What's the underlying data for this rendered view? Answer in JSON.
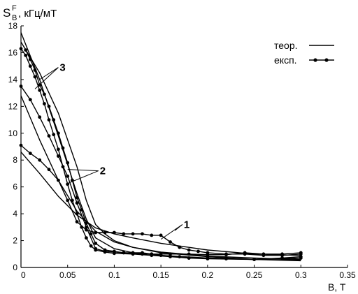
{
  "chart_data": {
    "type": "line",
    "title": "",
    "ylabel_main": "S",
    "ylabel_sup": "F",
    "ylabel_sub": "B",
    "ylabel_unit": ", кГц/мТ",
    "xlabel": "B, T",
    "xlim": [
      0,
      0.35
    ],
    "ylim": [
      0,
      18
    ],
    "x_ticks": [
      0,
      0.05,
      0.1,
      0.15,
      0.2,
      0.25,
      0.3,
      0.35
    ],
    "x_tick_labels": [
      "0",
      "0.05",
      "0.1",
      "0.15",
      "0.2",
      "0.25",
      "0.3",
      "0.35"
    ],
    "y_ticks": [
      0,
      2,
      4,
      6,
      8,
      10,
      12,
      14,
      16,
      18
    ],
    "y_tick_labels": [
      "0",
      "2",
      "4",
      "6",
      "8",
      "10",
      "12",
      "14",
      "16",
      "18"
    ],
    "grid": false,
    "legend": {
      "placement": "top-right",
      "entries": [
        {
          "label": "теор.",
          "style": "line"
        },
        {
          "label": "експ.",
          "style": "line-markers"
        }
      ]
    },
    "curve_labels": [
      {
        "text": "1",
        "pointer_targets": [
          [
            0.15,
            2.1
          ],
          [
            0.165,
            2.75
          ]
        ],
        "label_at": [
          0.173,
          3.2
        ]
      },
      {
        "text": "2",
        "pointer_targets": [
          [
            0.048,
            6.2
          ],
          [
            0.05,
            7.3
          ]
        ],
        "label_at": [
          0.083,
          7.2
        ]
      },
      {
        "text": "3",
        "pointer_targets": [
          [
            0.015,
            13.3
          ],
          [
            0.02,
            14.0
          ]
        ],
        "label_at": [
          0.04,
          14.9
        ]
      }
    ],
    "series": [
      {
        "group": "1",
        "kind": "theory",
        "x": [
          0,
          0.02,
          0.04,
          0.06,
          0.08,
          0.1,
          0.12,
          0.15,
          0.18,
          0.2,
          0.25,
          0.3
        ],
        "y": [
          8.6,
          7.0,
          5.3,
          3.9,
          2.95,
          2.5,
          2.2,
          1.8,
          1.5,
          1.3,
          1.0,
          0.9
        ]
      },
      {
        "group": "1",
        "kind": "experiment",
        "x": [
          0,
          0.01,
          0.02,
          0.03,
          0.04,
          0.05,
          0.06,
          0.07,
          0.08,
          0.09,
          0.1,
          0.11,
          0.12,
          0.13,
          0.14,
          0.15,
          0.16,
          0.17,
          0.18,
          0.19,
          0.2,
          0.22,
          0.24,
          0.26,
          0.28,
          0.3
        ],
        "y": [
          9.1,
          8.5,
          8.0,
          7.3,
          6.5,
          5.0,
          3.4,
          2.8,
          2.6,
          2.6,
          2.6,
          2.5,
          2.5,
          2.5,
          2.4,
          2.4,
          1.9,
          1.5,
          1.3,
          1.2,
          1.1,
          1.0,
          1.0,
          0.9,
          0.9,
          1.0
        ]
      },
      {
        "group": "2",
        "kind": "theory",
        "x": [
          0,
          0.02,
          0.04,
          0.06,
          0.08,
          0.1,
          0.12,
          0.15,
          0.2,
          0.25,
          0.3
        ],
        "y": [
          12.8,
          9.5,
          6.5,
          4.2,
          2.7,
          1.9,
          1.5,
          1.15,
          0.85,
          0.7,
          0.6
        ]
      },
      {
        "group": "2",
        "kind": "experiment",
        "x": [
          0,
          0.01,
          0.02,
          0.03,
          0.04,
          0.05,
          0.06,
          0.07,
          0.08,
          0.09,
          0.1,
          0.11,
          0.12,
          0.13,
          0.14,
          0.15,
          0.16,
          0.18,
          0.2,
          0.22,
          0.24,
          0.26,
          0.28,
          0.3
        ],
        "y": [
          13.5,
          12.5,
          11.2,
          9.8,
          8.3,
          6.8,
          4.8,
          3.0,
          1.4,
          1.2,
          1.15,
          1.1,
          1.1,
          1.1,
          1.0,
          1.0,
          1.0,
          1.0,
          0.95,
          0.95,
          1.1,
          1.0,
          1.0,
          1.1
        ]
      },
      {
        "group": "3",
        "kind": "theory",
        "x": [
          0,
          0.02,
          0.04,
          0.06,
          0.07,
          0.08,
          0.1,
          0.12,
          0.15,
          0.2,
          0.25,
          0.3
        ],
        "y": [
          17.5,
          14.0,
          9.8,
          5.5,
          3.6,
          2.2,
          1.4,
          1.1,
          0.9,
          0.7,
          0.6,
          0.55
        ]
      },
      {
        "group": "3",
        "kind": "theory",
        "x": [
          0,
          0.02,
          0.04,
          0.06,
          0.07,
          0.08,
          0.09,
          0.1,
          0.12,
          0.15,
          0.2,
          0.25,
          0.3
        ],
        "y": [
          16.8,
          14.5,
          11.5,
          7.5,
          5.0,
          3.2,
          2.5,
          2.0,
          1.5,
          1.1,
          0.8,
          0.6,
          0.5
        ]
      },
      {
        "group": "3",
        "kind": "experiment",
        "x": [
          0.005,
          0.01,
          0.015,
          0.02,
          0.025,
          0.03,
          0.035,
          0.04,
          0.045,
          0.05,
          0.055,
          0.06,
          0.065,
          0.07,
          0.075,
          0.08,
          0.09,
          0.1,
          0.11,
          0.12,
          0.13,
          0.14,
          0.15,
          0.16,
          0.17,
          0.18,
          0.2,
          0.22,
          0.25,
          0.28,
          0.3
        ],
        "y": [
          16.2,
          15.5,
          14.7,
          13.6,
          12.9,
          12.0,
          11.0,
          10.0,
          8.9,
          7.8,
          6.5,
          5.2,
          4.3,
          3.3,
          2.5,
          1.8,
          1.3,
          1.2,
          1.1,
          1.05,
          1.0,
          1.0,
          0.9,
          0.85,
          0.8,
          0.7,
          0.7,
          0.65,
          0.6,
          0.7,
          0.8
        ]
      },
      {
        "group": "3",
        "kind": "experiment",
        "x": [
          0,
          0.005,
          0.01,
          0.015,
          0.02,
          0.025,
          0.03,
          0.035,
          0.04,
          0.045,
          0.05,
          0.055,
          0.06,
          0.065,
          0.07,
          0.075,
          0.08,
          0.09,
          0.1,
          0.12,
          0.14,
          0.16,
          0.18,
          0.2,
          0.25,
          0.3
        ],
        "y": [
          16.3,
          15.8,
          15.0,
          14.2,
          13.2,
          12.2,
          11.0,
          9.9,
          8.8,
          7.5,
          6.2,
          5.0,
          4.0,
          3.0,
          2.2,
          1.6,
          1.3,
          1.15,
          1.05,
          1.0,
          0.9,
          0.8,
          0.7,
          0.65,
          0.6,
          0.7
        ]
      }
    ]
  }
}
